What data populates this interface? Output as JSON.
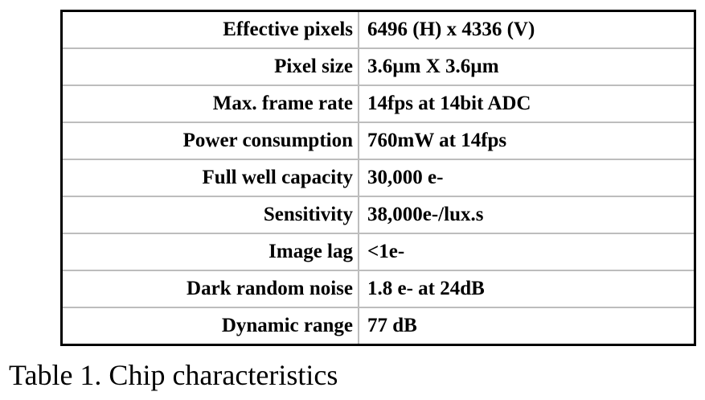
{
  "table": {
    "rows": [
      {
        "label": "Effective pixels",
        "value": "6496 (H) x 4336 (V)"
      },
      {
        "label": "Pixel size",
        "value": "3.6µm X 3.6µm"
      },
      {
        "label": "Max. frame rate",
        "value": "14fps at 14bit ADC"
      },
      {
        "label": "Power consumption",
        "value": "760mW at 14fps"
      },
      {
        "label": "Full well capacity",
        "value": "30,000 e-"
      },
      {
        "label": "Sensitivity",
        "value": "38,000e-/lux.s"
      },
      {
        "label": "Image lag",
        "value": "<1e-"
      },
      {
        "label": "Dark random noise",
        "value": "1.8 e- at 24dB"
      },
      {
        "label": "Dynamic range",
        "value": "77 dB"
      }
    ]
  },
  "caption": "Table 1. Chip characteristics"
}
